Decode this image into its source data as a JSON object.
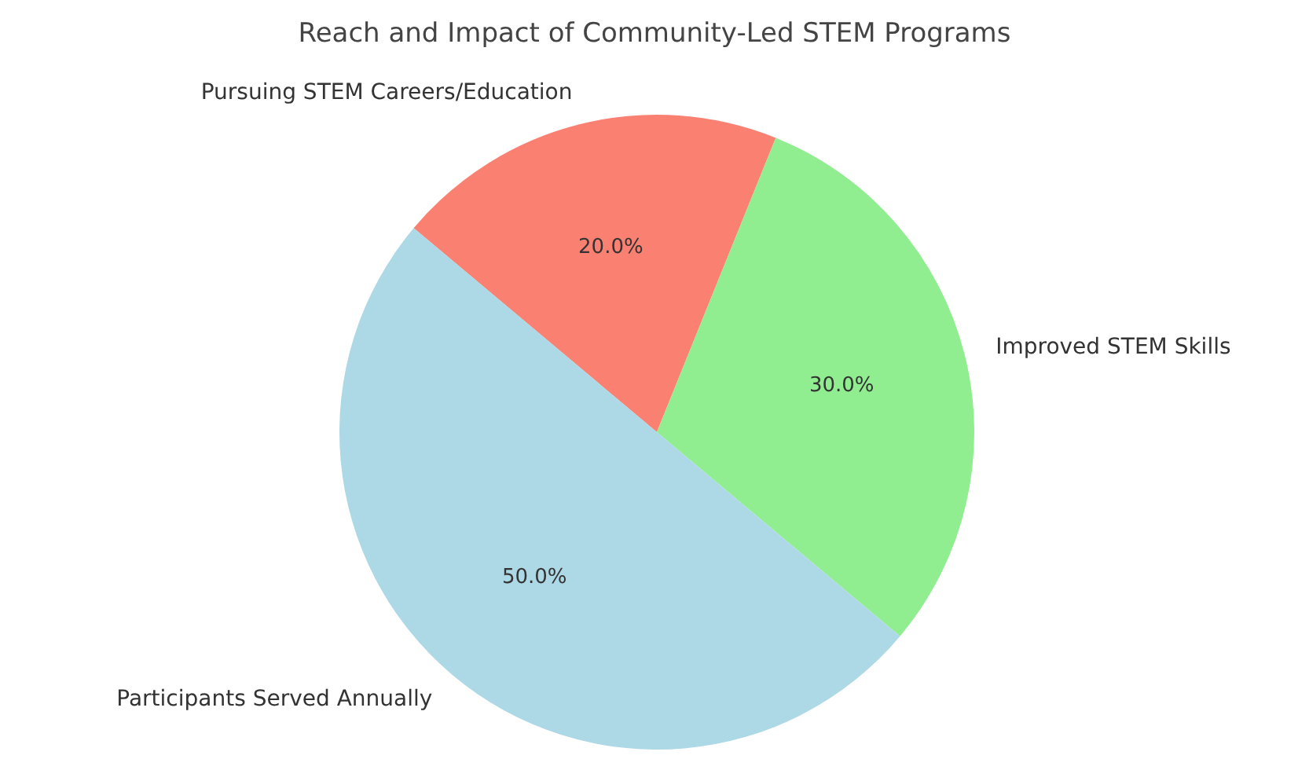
{
  "chart_data": {
    "type": "pie",
    "title": "Reach and Impact of Community-Led STEM Programs",
    "categories": [
      "Participants Served Annually",
      "Improved STEM Skills",
      "Pursuing STEM Careers/Education"
    ],
    "values": [
      50,
      30,
      20
    ],
    "value_labels": [
      "50.0%",
      "30.0%",
      "20.0%"
    ],
    "colors": [
      "#add8e6",
      "#90ee90",
      "#fa8072"
    ]
  }
}
